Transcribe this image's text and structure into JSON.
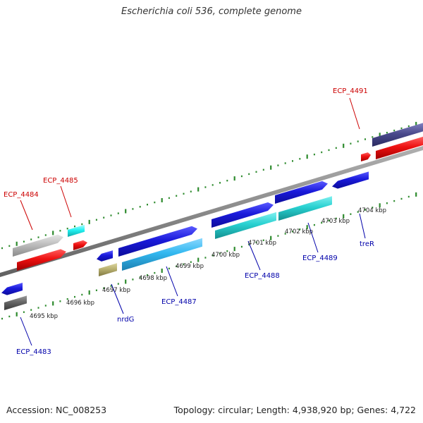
{
  "title": "Escherichia coli 536, complete genome",
  "accession": "Accession: NC_008253",
  "topology": "Topology: circular; Length: 4,938,920 bp; Genes: 4,722",
  "ticks": [
    "4695 kbp",
    "4696 kbp",
    "4697 kbp",
    "4698 kbp",
    "4699 kbp",
    "4700 kbp",
    "4701 kbp",
    "4702 kbp",
    "4703 kbp",
    "4704 kbp"
  ],
  "genes_top": [
    "ECP_4484",
    "ECP_4485",
    "ECP_4491"
  ],
  "genes_bottom": [
    "ECP_4483",
    "nrdG",
    "ECP_4487",
    "ECP_4488",
    "ECP_4489",
    "treR"
  ],
  "colors": {
    "top_label": "#cc0000",
    "bottom_label": "#0000aa",
    "blue": "#1a1adb",
    "red": "#ee1111",
    "cyan": "#28d0d0",
    "lightblue": "#33b8f0",
    "gray": "#b8b8b8",
    "darkgray": "#666666",
    "olive": "#b8b070",
    "navy": "#4a4a8c",
    "tick": "#2e8b2e"
  }
}
